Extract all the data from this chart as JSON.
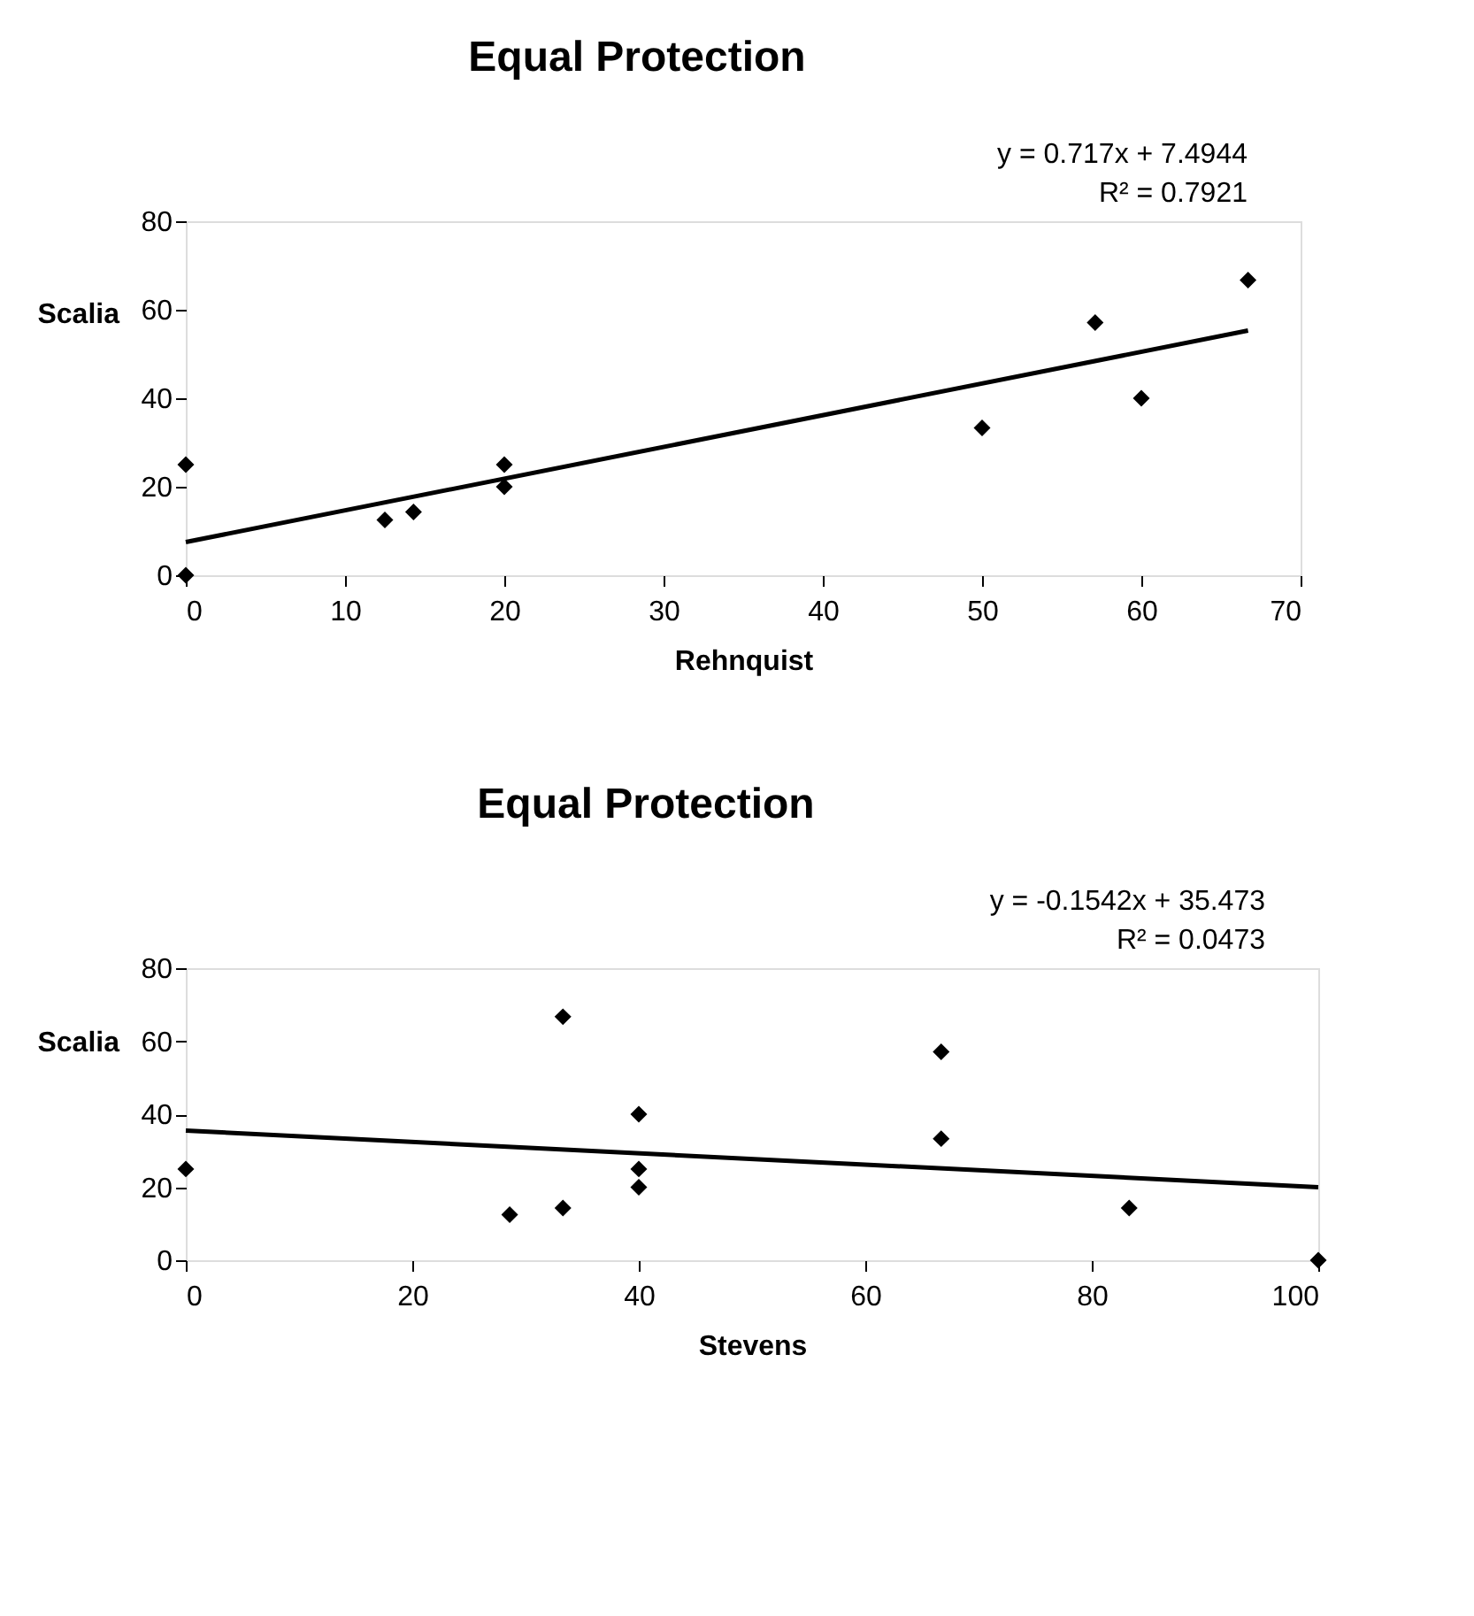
{
  "chart_data": [
    {
      "type": "scatter",
      "title": "Equal Protection",
      "xlabel": "Rehnquist",
      "ylabel": "Scalia",
      "annotations": [
        "y = 0.717x + 7.4944",
        "R² = 0.7921"
      ],
      "xlim": [
        0,
        70
      ],
      "xticks": [
        0,
        10,
        20,
        30,
        40,
        50,
        60,
        70
      ],
      "ylim": [
        0,
        80
      ],
      "yticks": [
        0,
        20,
        40,
        60,
        80
      ],
      "grid": false,
      "series": [
        {
          "type": "scatter",
          "marker": "diamond",
          "color": "#000000",
          "x": [
            0,
            0,
            12.5,
            14.3,
            20,
            20,
            50,
            57.1,
            60,
            66.7
          ],
          "values": [
            25,
            0,
            12.5,
            14.3,
            25,
            20,
            33.3,
            57.1,
            40,
            66.7
          ]
        },
        {
          "type": "line",
          "marker": "none",
          "color": "#000000",
          "x": [
            0,
            66.7
          ],
          "values": [
            7.5,
            55.3
          ]
        }
      ]
    },
    {
      "type": "scatter",
      "title": "Equal Protection",
      "xlabel": "Stevens",
      "ylabel": "Scalia",
      "annotations": [
        "y = -0.1542x + 35.473",
        "R² = 0.0473"
      ],
      "xlim": [
        0,
        100
      ],
      "xticks": [
        0,
        20,
        40,
        60,
        80,
        100
      ],
      "ylim": [
        0,
        80
      ],
      "yticks": [
        0,
        20,
        40,
        60,
        80
      ],
      "grid": false,
      "series": [
        {
          "type": "scatter",
          "marker": "diamond",
          "color": "#000000",
          "x": [
            0,
            28.6,
            33.3,
            33.3,
            40,
            40,
            40,
            66.7,
            66.7,
            83.3,
            100
          ],
          "values": [
            25,
            12.5,
            66.7,
            14.3,
            40,
            25,
            20,
            57.1,
            33.3,
            14.3,
            0
          ]
        },
        {
          "type": "line",
          "marker": "none",
          "color": "#000000",
          "x": [
            0,
            100
          ],
          "values": [
            35.5,
            20
          ]
        }
      ]
    }
  ]
}
